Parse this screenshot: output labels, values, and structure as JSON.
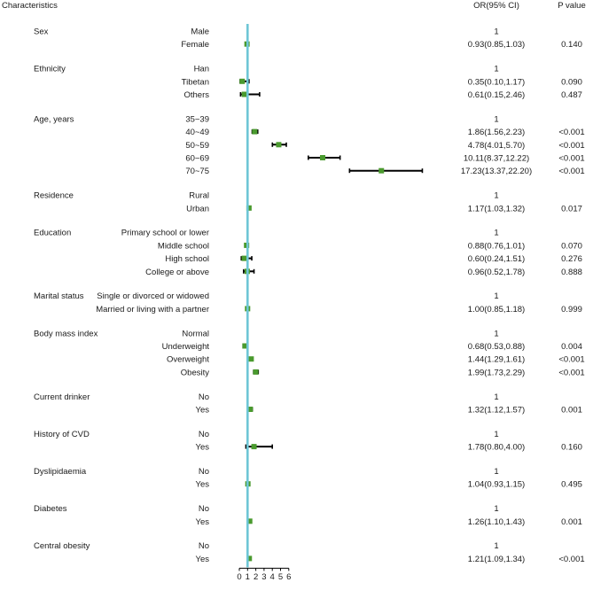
{
  "headers": {
    "characteristics": "Characteristics",
    "or": "OR(95% CI)",
    "p": "P value"
  },
  "colors": {
    "reference_line": "#6ec6d6",
    "marker": "#4a9a2e",
    "whisker": "#000000"
  },
  "chart_data": {
    "type": "forest",
    "x_ticks": [
      0,
      1,
      2,
      3,
      4,
      5,
      6
    ],
    "xlim": [
      0,
      6
    ],
    "reference_value": 1,
    "groups": [
      {
        "name": "Sex",
        "rows": [
          {
            "label": "Male",
            "or_text": "1",
            "p": ""
          },
          {
            "label": "Female",
            "or": 0.93,
            "lo": 0.85,
            "hi": 1.03,
            "or_text": "0.93(0.85,1.03)",
            "p": "0.140"
          }
        ]
      },
      {
        "name": "Ethnicity",
        "rows": [
          {
            "label": "Han",
            "or_text": "1",
            "p": ""
          },
          {
            "label": "Tibetan",
            "or": 0.35,
            "lo": 0.1,
            "hi": 1.17,
            "or_text": "0.35(0.10,1.17)",
            "p": "0.090"
          },
          {
            "label": "Others",
            "or": 0.61,
            "lo": 0.15,
            "hi": 2.46,
            "or_text": "0.61(0.15,2.46)",
            "p": "0.487"
          }
        ]
      },
      {
        "name": "Age, years",
        "rows": [
          {
            "label": "35~39",
            "or_text": "1",
            "p": ""
          },
          {
            "label": "40~49",
            "or": 1.86,
            "lo": 1.56,
            "hi": 2.23,
            "or_text": "1.86(1.56,2.23)",
            "p": "<0.001"
          },
          {
            "label": "50~59",
            "or": 4.78,
            "lo": 4.01,
            "hi": 5.7,
            "or_text": "4.78(4.01,5.70)",
            "p": "<0.001"
          },
          {
            "label": "60~69",
            "or": 10.11,
            "lo": 8.37,
            "hi": 12.22,
            "or_text": "10.11(8.37,12.22)",
            "p": "<0.001"
          },
          {
            "label": "70~75",
            "or": 17.23,
            "lo": 13.37,
            "hi": 22.2,
            "or_text": "17.23(13.37,22.20)",
            "p": "<0.001"
          }
        ]
      },
      {
        "name": "Residence",
        "rows": [
          {
            "label": "Rural",
            "or_text": "1",
            "p": ""
          },
          {
            "label": "Urban",
            "or": 1.17,
            "lo": 1.03,
            "hi": 1.32,
            "or_text": "1.17(1.03,1.32)",
            "p": "0.017"
          }
        ]
      },
      {
        "name": "Education",
        "rows": [
          {
            "label": "Primary school or lower",
            "or_text": "1",
            "p": ""
          },
          {
            "label": "Middle school",
            "or": 0.88,
            "lo": 0.76,
            "hi": 1.01,
            "or_text": "0.88(0.76,1.01)",
            "p": "0.070"
          },
          {
            "label": "High school",
            "or": 0.6,
            "lo": 0.24,
            "hi": 1.51,
            "or_text": "0.60(0.24,1.51)",
            "p": "0.276"
          },
          {
            "label": "College or above",
            "or": 0.96,
            "lo": 0.52,
            "hi": 1.78,
            "or_text": "0.96(0.52,1.78)",
            "p": "0.888"
          }
        ]
      },
      {
        "name": "Marital status",
        "rows": [
          {
            "label": "Single or divorced or widowed",
            "or_text": "1",
            "p": ""
          },
          {
            "label": "Married or living with a partner",
            "or": 1.0,
            "lo": 0.85,
            "hi": 1.18,
            "or_text": "1.00(0.85,1.18)",
            "p": "0.999"
          }
        ]
      },
      {
        "name": "Body mass index",
        "rows": [
          {
            "label": "Normal",
            "or_text": "1",
            "p": ""
          },
          {
            "label": "Underweight",
            "or": 0.68,
            "lo": 0.53,
            "hi": 0.88,
            "or_text": "0.68(0.53,0.88)",
            "p": "0.004"
          },
          {
            "label": "Overweight",
            "or": 1.44,
            "lo": 1.29,
            "hi": 1.61,
            "or_text": "1.44(1.29,1.61)",
            "p": "<0.001"
          },
          {
            "label": "Obesity",
            "or": 1.99,
            "lo": 1.73,
            "hi": 2.29,
            "or_text": "1.99(1.73,2.29)",
            "p": "<0.001"
          }
        ]
      },
      {
        "name": "Current drinker",
        "rows": [
          {
            "label": "No",
            "or_text": "1",
            "p": ""
          },
          {
            "label": "Yes",
            "or": 1.32,
            "lo": 1.12,
            "hi": 1.57,
            "or_text": "1.32(1.12,1.57)",
            "p": "0.001"
          }
        ]
      },
      {
        "name": "History of CVD",
        "rows": [
          {
            "label": "No",
            "or_text": "1",
            "p": ""
          },
          {
            "label": "Yes",
            "or": 1.78,
            "lo": 0.8,
            "hi": 4.0,
            "or_text": "1.78(0.80,4.00)",
            "p": "0.160"
          }
        ]
      },
      {
        "name": "Dyslipidaemia",
        "rows": [
          {
            "label": "No",
            "or_text": "1",
            "p": ""
          },
          {
            "label": "Yes",
            "or": 1.04,
            "lo": 0.93,
            "hi": 1.15,
            "or_text": "1.04(0.93,1.15)",
            "p": "0.495"
          }
        ]
      },
      {
        "name": "Diabetes",
        "rows": [
          {
            "label": "No",
            "or_text": "1",
            "p": ""
          },
          {
            "label": "Yes",
            "or": 1.26,
            "lo": 1.1,
            "hi": 1.43,
            "or_text": "1.26(1.10,1.43)",
            "p": "0.001"
          }
        ]
      },
      {
        "name": "Central obesity",
        "rows": [
          {
            "label": "No",
            "or_text": "1",
            "p": ""
          },
          {
            "label": "Yes",
            "or": 1.21,
            "lo": 1.09,
            "hi": 1.34,
            "or_text": "1.21(1.09,1.34)",
            "p": "<0.001"
          }
        ]
      }
    ]
  }
}
